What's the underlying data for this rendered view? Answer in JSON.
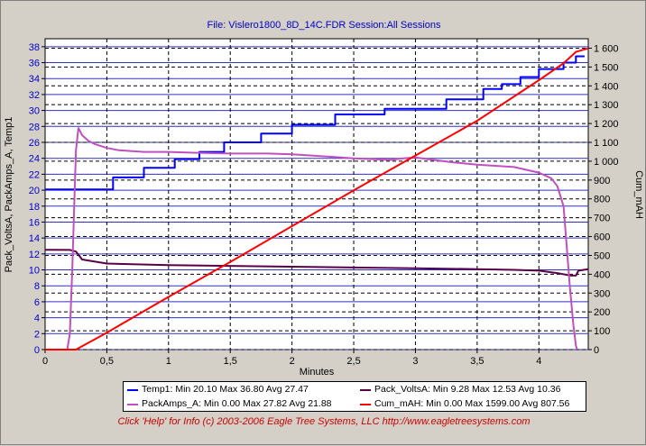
{
  "title": "File: Vislero1800_8D_14C.FDR   Session:All Sessions",
  "footer": "Click 'Help' for Info  (c) 2003-2006 Eagle Tree Systems, LLC    http://www.eagletreesystems.com",
  "chart_data": {
    "type": "line",
    "xlabel": "Minutes",
    "ylabel_left": "Pack_VoltsA, PackAmps_A, Temp1",
    "ylabel_right": "Cum_mAH",
    "xlim": [
      0,
      4.4
    ],
    "ylim_left": [
      0,
      39
    ],
    "ylim_right": [
      0,
      1650
    ],
    "x_ticks": [
      "0",
      "0,5",
      "1",
      "1,5",
      "2",
      "2,5",
      "3",
      "3,5",
      "4"
    ],
    "y_left_ticks": [
      "0",
      "2",
      "4",
      "6",
      "8",
      "10",
      "12",
      "14",
      "16",
      "18",
      "20",
      "22",
      "24",
      "26",
      "28",
      "30",
      "32",
      "34",
      "36",
      "38"
    ],
    "y_right_ticks": [
      "0",
      "100",
      "200",
      "300",
      "400",
      "500",
      "600",
      "700",
      "800",
      "900",
      "1 000",
      "1 100",
      "1 200",
      "1 300",
      "1 400",
      "1 500",
      "1 600"
    ],
    "grid": true,
    "legend_position": "bottom",
    "series": [
      {
        "name": "Temp1",
        "axis": "left",
        "color": "#0000ff",
        "legend": "Temp1:  Min 20.10 Max 36.80 Avg 27.47",
        "x": [
          0,
          0.55,
          0.55,
          0.8,
          0.8,
          1.05,
          1.05,
          1.25,
          1.25,
          1.45,
          1.45,
          1.75,
          1.75,
          2.0,
          2.0,
          2.35,
          2.35,
          2.75,
          2.75,
          3.25,
          3.25,
          3.55,
          3.55,
          3.7,
          3.7,
          3.85,
          3.85,
          4.0,
          4.0,
          4.2,
          4.2,
          4.3,
          4.3,
          4.37
        ],
        "y": [
          20.1,
          20.1,
          21.6,
          21.6,
          22.8,
          22.8,
          23.9,
          23.9,
          24.8,
          24.8,
          26.0,
          26.0,
          27.1,
          27.1,
          28.2,
          28.2,
          29.5,
          29.5,
          30.2,
          30.2,
          31.4,
          31.4,
          32.7,
          32.7,
          33.3,
          33.3,
          34.2,
          34.2,
          35.2,
          35.2,
          36.0,
          36.0,
          36.8,
          36.8
        ]
      },
      {
        "name": "Pack_VoltsA",
        "axis": "left",
        "color": "#5a0046",
        "legend": "Pack_VoltsA:  Min 9.28 Max 12.53 Avg 10.36",
        "x": [
          0,
          0.2,
          0.25,
          0.3,
          0.5,
          1.0,
          1.5,
          2.0,
          2.5,
          3.0,
          3.5,
          3.8,
          4.0,
          4.15,
          4.25,
          4.3,
          4.32,
          4.4
        ],
        "y": [
          12.53,
          12.5,
          12.3,
          11.3,
          10.8,
          10.6,
          10.5,
          10.4,
          10.3,
          10.2,
          10.1,
          10.0,
          9.9,
          9.6,
          9.3,
          9.28,
          9.9,
          10.1
        ]
      },
      {
        "name": "PackAmps_A",
        "axis": "left",
        "color": "#c050c0",
        "legend": "PackAmps_A:  Min 0.00 Max 27.82 Avg 21.88",
        "x": [
          0,
          0.18,
          0.2,
          0.22,
          0.24,
          0.25,
          0.27,
          0.3,
          0.35,
          0.4,
          0.5,
          0.6,
          0.8,
          1.0,
          1.2,
          1.5,
          1.8,
          2.0,
          2.2,
          2.5,
          2.8,
          2.9,
          3.0,
          3.1,
          3.3,
          3.5,
          3.8,
          4.0,
          4.1,
          4.15,
          4.2,
          4.22,
          4.25,
          4.28,
          4.3,
          4.31
        ],
        "y": [
          0,
          0,
          2,
          10,
          20,
          25,
          27.8,
          26.9,
          26.2,
          25.8,
          25.3,
          25.0,
          24.8,
          24.8,
          24.7,
          24.6,
          24.6,
          24.5,
          24.3,
          24.0,
          23.8,
          24.0,
          24.1,
          23.9,
          23.5,
          23.2,
          22.9,
          22.2,
          21.5,
          20.5,
          18.0,
          14.0,
          8.0,
          3.0,
          0.5,
          0
        ]
      },
      {
        "name": "Cum_mAH",
        "axis": "right",
        "color": "#ff0000",
        "legend": "Cum_mAH:  Min 0.00 Max 1599.00 Avg 807.56",
        "x": [
          0,
          0.25,
          0.5,
          1.0,
          1.5,
          2.0,
          2.5,
          3.0,
          3.5,
          4.0,
          4.2,
          4.3,
          4.4
        ],
        "y": [
          0,
          0,
          90,
          280,
          465,
          655,
          845,
          1030,
          1215,
          1430,
          1520,
          1580,
          1599
        ]
      }
    ]
  }
}
